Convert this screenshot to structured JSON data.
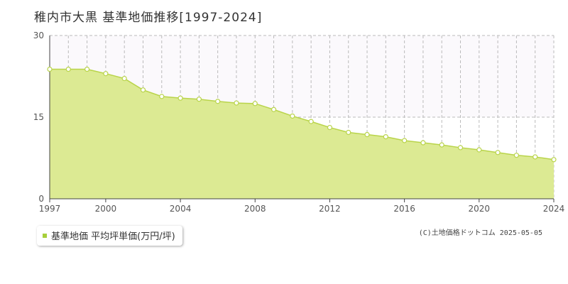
{
  "title": "稚内市大黒 基準地価推移[1997-2024]",
  "legend_label": "基準地価 平均坪単価(万円/坪)",
  "source_text": "(C)土地価格ドットコム 2025-05-05",
  "colors": {
    "fill": "#dcea93",
    "line": "#b9d44a",
    "marker_stroke": "#b9d44a",
    "marker_fill": "#ffffff",
    "swatch": "#a7cf3a"
  },
  "chart_data": {
    "type": "area",
    "title": "稚内市大黒 基準地価推移[1997-2024]",
    "x": [
      1997,
      1998,
      1999,
      2000,
      2001,
      2002,
      2003,
      2004,
      2005,
      2006,
      2007,
      2008,
      2009,
      2010,
      2011,
      2012,
      2013,
      2014,
      2015,
      2016,
      2017,
      2018,
      2019,
      2020,
      2021,
      2022,
      2023,
      2024
    ],
    "series": [
      {
        "name": "基準地価 平均坪単価(万円/坪)",
        "values": [
          23.8,
          23.8,
          23.8,
          23.0,
          22.1,
          20.0,
          18.8,
          18.5,
          18.3,
          17.9,
          17.6,
          17.5,
          16.4,
          15.2,
          14.2,
          13.1,
          12.2,
          11.8,
          11.4,
          10.7,
          10.3,
          9.9,
          9.4,
          9.0,
          8.5,
          8.0,
          7.7,
          7.2
        ]
      }
    ],
    "ylim": [
      0,
      30
    ],
    "yticks": [
      0,
      15,
      30
    ],
    "xticks": [
      1997,
      2000,
      2004,
      2008,
      2012,
      2016,
      2020,
      2024
    ],
    "grid": true
  }
}
